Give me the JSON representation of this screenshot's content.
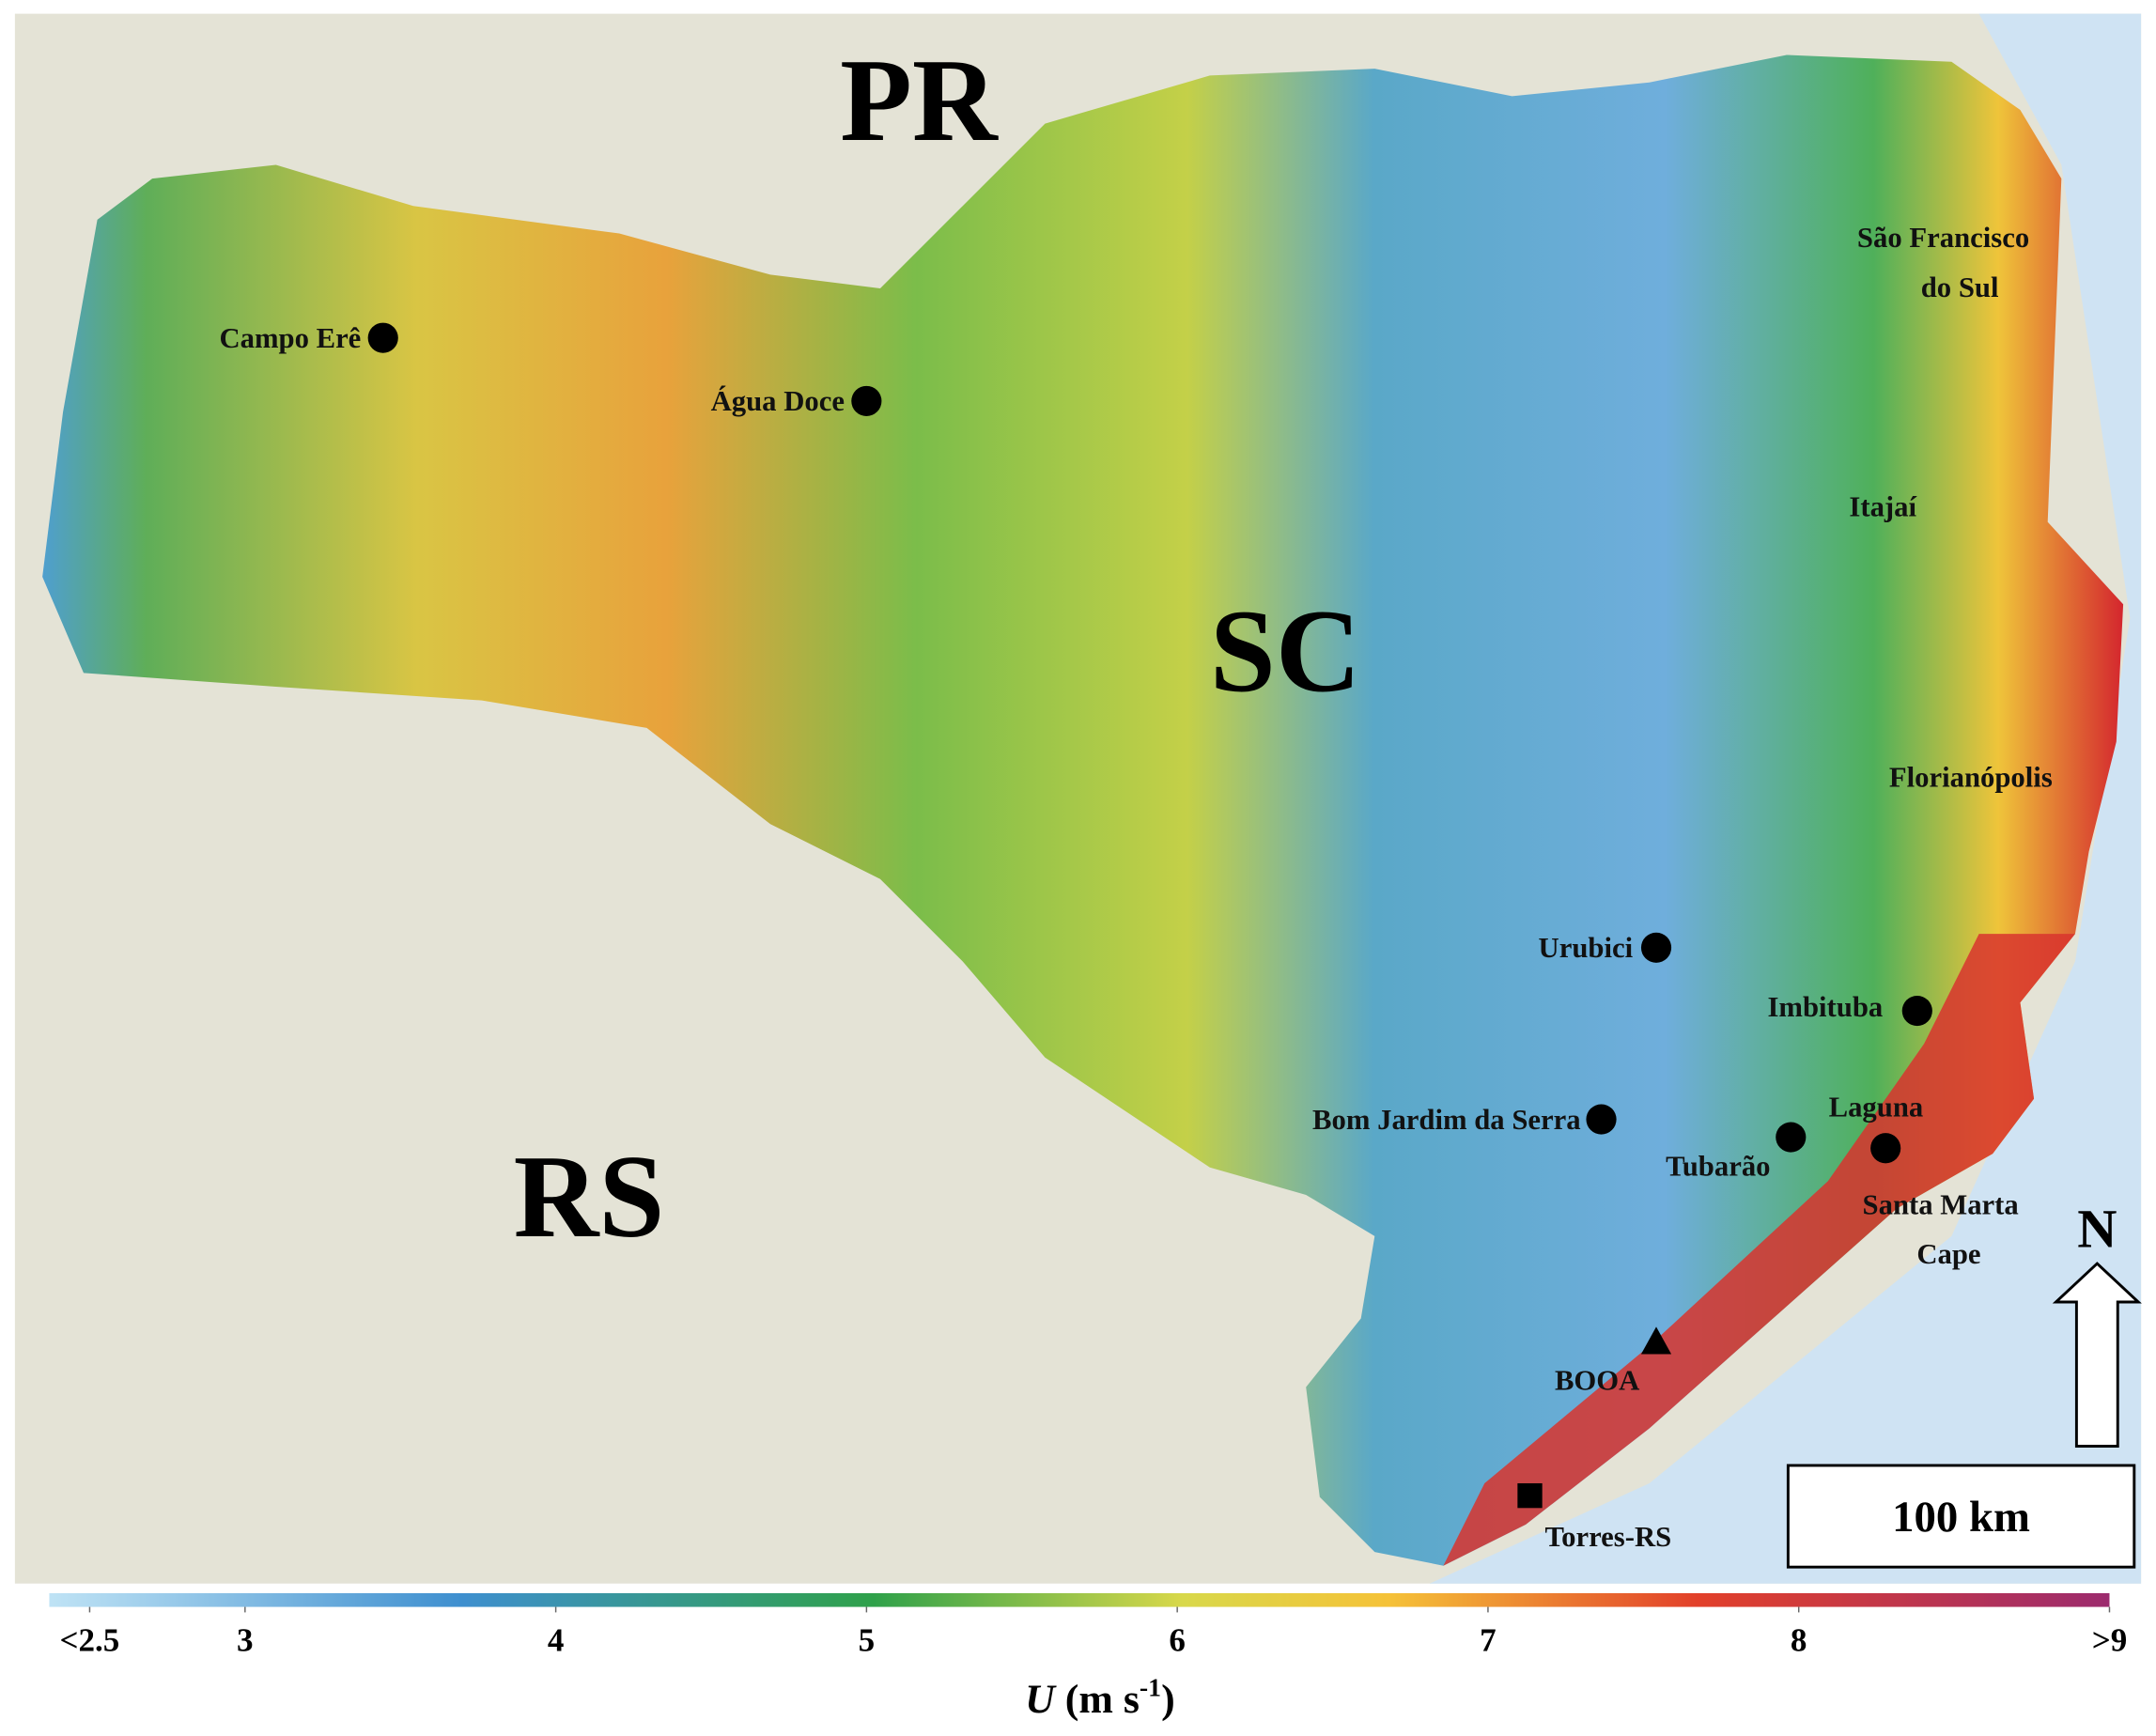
{
  "regions": [
    "PR",
    "SC",
    "RS"
  ],
  "places": [
    "Campo Erê",
    "Água Doce",
    "São Francisco",
    "do Sul",
    "Itajaí",
    "Florianópolis",
    "Urubici",
    "Imbituba",
    "Bom Jardim da Serra",
    "Laguna",
    "Tubarão",
    "Santa Marta",
    "Cape",
    "BOOA",
    "Torres-RS"
  ],
  "north": "N",
  "scale_bar": "100 km",
  "colorbar": {
    "lim": [
      2.37,
      9
    ],
    "ticks": [
      {
        "value": 2.5,
        "label": "<2.5"
      },
      3,
      4,
      5,
      6,
      7,
      8,
      {
        "value": 9,
        "label": ">9"
      }
    ],
    "title": {
      "symbol": "U",
      "unit": "(m s",
      "exponent": "-1",
      "close": ")"
    }
  }
}
